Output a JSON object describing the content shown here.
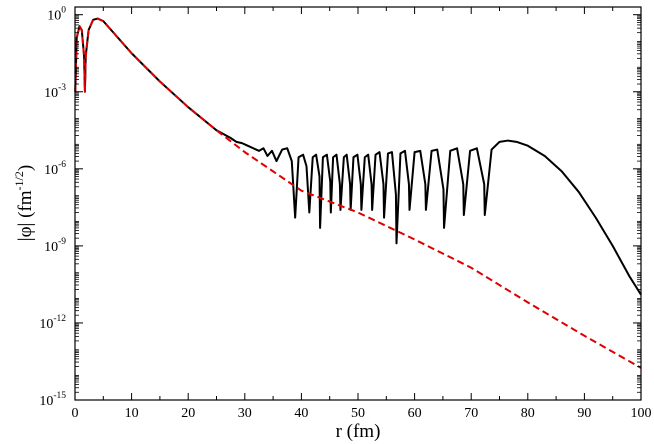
{
  "chart_data": {
    "type": "line",
    "title": "",
    "xlabel": "r (fm)",
    "ylabel": {
      "main": "|φ| (fm",
      "exponent": "-1/2",
      "close": ")"
    },
    "xlim": [
      0,
      100
    ],
    "ylim_log10": [
      -15,
      0.3
    ],
    "yscale": "log",
    "grid": false,
    "legend": "none",
    "x_ticks": [
      "0",
      "10",
      "20",
      "30",
      "40",
      "50",
      "60",
      "70",
      "80",
      "90",
      "100"
    ],
    "y_ticks": [
      {
        "base": "10",
        "exp": "0"
      },
      {
        "base": "10",
        "exp": "-3"
      },
      {
        "base": "10",
        "exp": "-6"
      },
      {
        "base": "10",
        "exp": "-9"
      },
      {
        "base": "10",
        "exp": "-12"
      },
      {
        "base": "10",
        "exp": "-15"
      }
    ],
    "series": [
      {
        "color": "#000000",
        "style": "solid",
        "points": [
          [
            0.05,
            -3.0
          ],
          [
            0.3,
            -0.9
          ],
          [
            0.8,
            -0.45
          ],
          [
            1.2,
            -0.6
          ],
          [
            1.6,
            -1.6
          ],
          [
            1.75,
            -3.0
          ],
          [
            1.9,
            -1.6
          ],
          [
            2.4,
            -0.6
          ],
          [
            3.2,
            -0.2
          ],
          [
            4.0,
            -0.15
          ],
          [
            5.0,
            -0.25
          ],
          [
            10,
            -1.5
          ],
          [
            15,
            -2.6
          ],
          [
            20,
            -3.6
          ],
          [
            25,
            -4.5
          ],
          [
            27.5,
            -4.8
          ],
          [
            28.5,
            -4.95
          ],
          [
            29.5,
            -5.0
          ],
          [
            30.5,
            -5.1
          ],
          [
            31.5,
            -5.2
          ],
          [
            32.5,
            -5.3
          ],
          [
            33.3,
            -5.2
          ],
          [
            34.0,
            -5.5
          ],
          [
            34.8,
            -5.3
          ],
          [
            35.6,
            -5.7
          ],
          [
            36.6,
            -5.25
          ],
          [
            37.5,
            -5.2
          ],
          [
            38.3,
            -5.7
          ],
          [
            38.9,
            -7.9
          ],
          [
            39.5,
            -5.55
          ],
          [
            40.3,
            -5.45
          ],
          [
            40.9,
            -5.9
          ],
          [
            41.4,
            -7.7
          ],
          [
            42.0,
            -5.55
          ],
          [
            42.6,
            -5.45
          ],
          [
            43.2,
            -6.3
          ],
          [
            43.3,
            -8.3
          ],
          [
            43.8,
            -5.55
          ],
          [
            44.5,
            -5.45
          ],
          [
            45.1,
            -6.5
          ],
          [
            45.2,
            -7.7
          ],
          [
            45.6,
            -5.55
          ],
          [
            46.2,
            -5.45
          ],
          [
            46.8,
            -6.6
          ],
          [
            46.9,
            -7.6
          ],
          [
            47.5,
            -5.55
          ],
          [
            48.0,
            -5.45
          ],
          [
            48.6,
            -6.6
          ],
          [
            48.7,
            -7.6
          ],
          [
            49.2,
            -5.55
          ],
          [
            49.9,
            -5.45
          ],
          [
            50.5,
            -6.6
          ],
          [
            50.6,
            -7.6
          ],
          [
            51.2,
            -5.55
          ],
          [
            51.8,
            -5.45
          ],
          [
            52.4,
            -6.6
          ],
          [
            52.5,
            -7.6
          ],
          [
            53.1,
            -5.45
          ],
          [
            53.8,
            -5.35
          ],
          [
            54.5,
            -6.6
          ],
          [
            54.6,
            -7.9
          ],
          [
            55.3,
            -5.4
          ],
          [
            56.0,
            -5.35
          ],
          [
            56.7,
            -7.0
          ],
          [
            56.8,
            -8.9
          ],
          [
            57.5,
            -5.4
          ],
          [
            58.3,
            -5.3
          ],
          [
            59.0,
            -6.6
          ],
          [
            59.1,
            -7.6
          ],
          [
            60.0,
            -5.35
          ],
          [
            61.0,
            -5.3
          ],
          [
            61.9,
            -6.6
          ],
          [
            62.0,
            -7.6
          ],
          [
            63.0,
            -5.3
          ],
          [
            64.0,
            -5.25
          ],
          [
            65.1,
            -6.8
          ],
          [
            65.2,
            -8.3
          ],
          [
            66.3,
            -5.3
          ],
          [
            67.5,
            -5.2
          ],
          [
            68.6,
            -6.6
          ],
          [
            68.7,
            -7.8
          ],
          [
            69.8,
            -5.3
          ],
          [
            71.0,
            -5.2
          ],
          [
            72.3,
            -6.6
          ],
          [
            72.4,
            -7.8
          ],
          [
            73.6,
            -5.25
          ],
          [
            75.0,
            -4.95
          ],
          [
            76.5,
            -4.9
          ],
          [
            78.0,
            -4.95
          ],
          [
            80.0,
            -5.1
          ],
          [
            83.0,
            -5.5
          ],
          [
            86.0,
            -6.1
          ],
          [
            89.0,
            -6.9
          ],
          [
            92.0,
            -7.9
          ],
          [
            95.0,
            -9.0
          ],
          [
            98.0,
            -10.2
          ],
          [
            100.0,
            -10.9
          ]
        ]
      },
      {
        "color": "#dd0000",
        "style": "dashed",
        "points": [
          [
            0.05,
            -3.0
          ],
          [
            0.3,
            -0.9
          ],
          [
            0.8,
            -0.45
          ],
          [
            1.2,
            -0.6
          ],
          [
            1.6,
            -1.6
          ],
          [
            1.75,
            -3.0
          ],
          [
            1.9,
            -1.6
          ],
          [
            2.4,
            -0.6
          ],
          [
            3.2,
            -0.2
          ],
          [
            4.0,
            -0.15
          ],
          [
            5.0,
            -0.25
          ],
          [
            10,
            -1.5
          ],
          [
            15,
            -2.6
          ],
          [
            20,
            -3.6
          ],
          [
            25,
            -4.5
          ],
          [
            30,
            -5.35
          ],
          [
            40,
            -6.85
          ],
          [
            50,
            -7.7
          ],
          [
            60,
            -8.75
          ],
          [
            70,
            -9.85
          ],
          [
            80,
            -11.2
          ],
          [
            90,
            -12.5
          ],
          [
            100,
            -13.75
          ]
        ]
      }
    ]
  }
}
